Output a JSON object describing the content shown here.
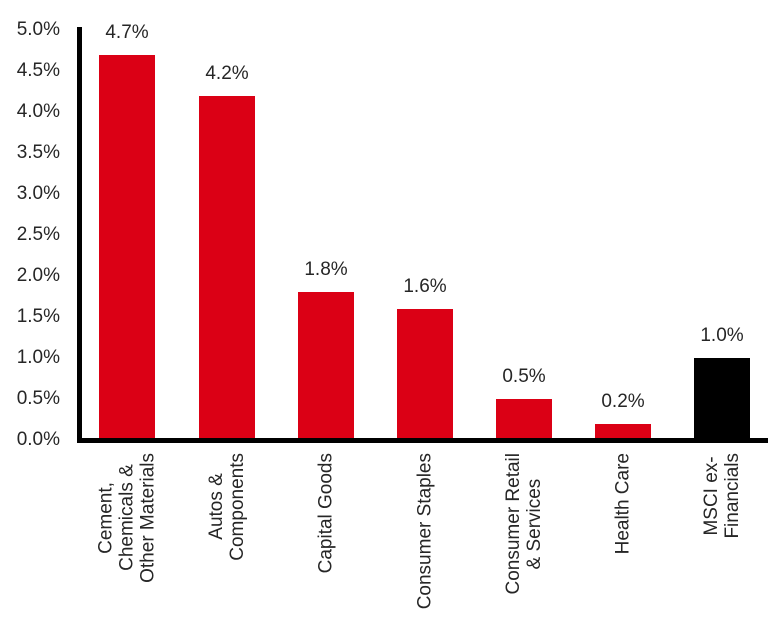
{
  "chart_data": {
    "type": "bar",
    "title": "",
    "xlabel": "",
    "ylabel": "",
    "categories": [
      "Cement,\nChemicals &\nOther Materials",
      "Autos &\nComponents",
      "Capital Goods",
      "Consumer Staples",
      "Consumer Retail\n& Services",
      "Health Care",
      "MSCI ex-\nFinancials"
    ],
    "values": [
      4.7,
      4.2,
      1.8,
      1.6,
      0.5,
      0.2,
      1.0
    ],
    "value_labels": [
      "4.7%",
      "4.2%",
      "1.8%",
      "1.6%",
      "0.5%",
      "0.2%",
      "1.0%"
    ],
    "bar_colors": [
      "#db0015",
      "#db0015",
      "#db0015",
      "#db0015",
      "#db0015",
      "#db0015",
      "#000000"
    ],
    "y_ticks": [
      "0.0%",
      "0.5%",
      "1.0%",
      "1.5%",
      "2.0%",
      "2.5%",
      "3.0%",
      "3.5%",
      "4.0%",
      "4.5%",
      "5.0%"
    ],
    "ylim": [
      0,
      5
    ],
    "grid": false,
    "legend": "none",
    "accent_color": "#db0015",
    "highlight_color": "#000000",
    "axis_color": "#000000",
    "text_color": "#262626"
  }
}
